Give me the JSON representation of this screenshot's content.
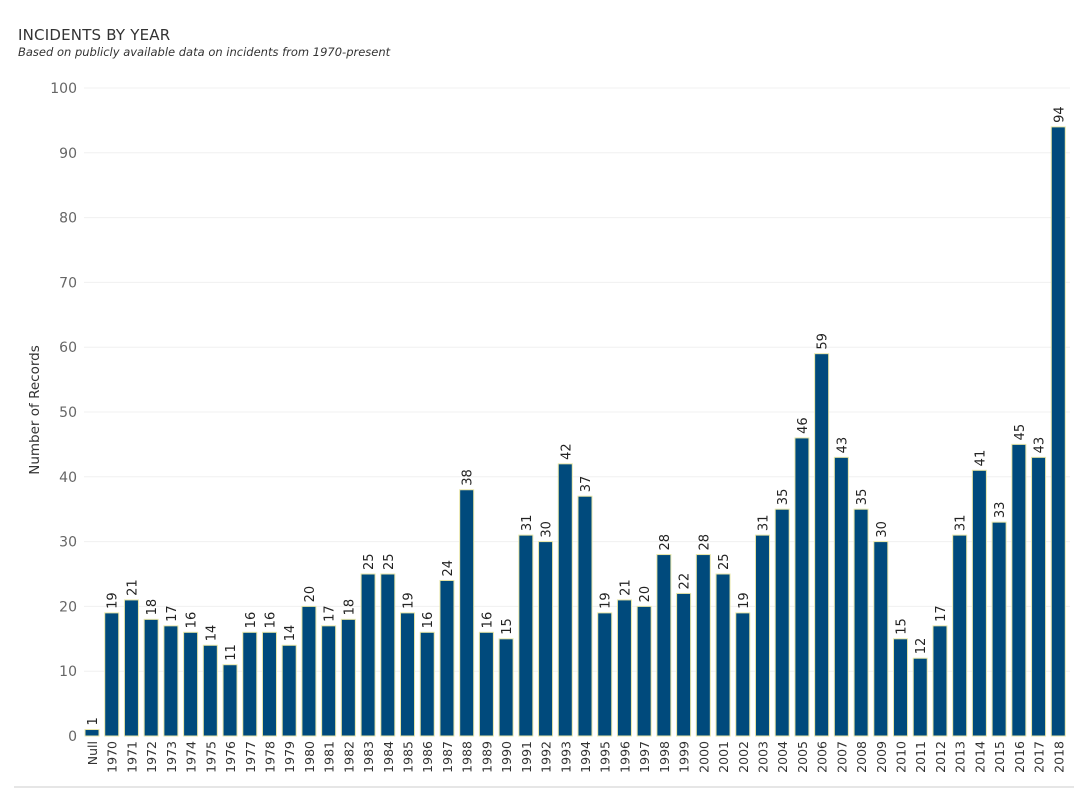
{
  "header": {
    "title": "INCIDENTS BY YEAR",
    "subtitle": "Based on publicly available data on incidents from 1970-present"
  },
  "chart_data": {
    "type": "bar",
    "title": "INCIDENTS BY YEAR",
    "subtitle": "Based on publicly available data on incidents from 1970-present",
    "xlabel": "",
    "ylabel": "Number of Records",
    "ylim": [
      0,
      100
    ],
    "yticks": [
      0,
      10,
      20,
      30,
      40,
      50,
      60,
      70,
      80,
      90,
      100
    ],
    "grid": true,
    "bar_color": "#004a7c",
    "bar_edge_color": "#e8e6a8",
    "categories": [
      "Null",
      "1970",
      "1971",
      "1972",
      "1973",
      "1974",
      "1975",
      "1976",
      "1977",
      "1978",
      "1979",
      "1980",
      "1981",
      "1982",
      "1983",
      "1984",
      "1985",
      "1986",
      "1987",
      "1988",
      "1989",
      "1990",
      "1991",
      "1992",
      "1993",
      "1994",
      "1995",
      "1996",
      "1997",
      "1998",
      "1999",
      "2000",
      "2001",
      "2002",
      "2003",
      "2004",
      "2005",
      "2006",
      "2007",
      "2008",
      "2009",
      "2010",
      "2011",
      "2012",
      "2013",
      "2014",
      "2015",
      "2016",
      "2017",
      "2018"
    ],
    "values": [
      1,
      19,
      21,
      18,
      17,
      16,
      14,
      11,
      16,
      16,
      14,
      20,
      17,
      18,
      25,
      25,
      19,
      16,
      24,
      38,
      16,
      15,
      31,
      30,
      42,
      37,
      19,
      21,
      20,
      28,
      22,
      28,
      25,
      19,
      31,
      35,
      46,
      59,
      43,
      35,
      30,
      15,
      12,
      17,
      31,
      41,
      33,
      45,
      43,
      94
    ]
  }
}
